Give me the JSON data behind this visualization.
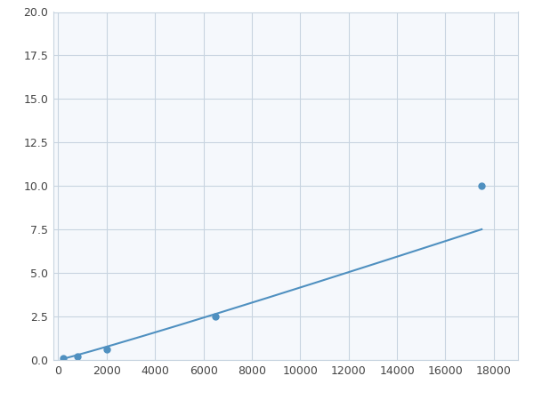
{
  "x": [
    200,
    800,
    2000,
    6500,
    17500
  ],
  "y": [
    0.1,
    0.2,
    0.6,
    2.5,
    10.0
  ],
  "line_color": "#4f90c0",
  "marker_color": "#4f90c0",
  "marker_size": 5,
  "xlim": [
    -200,
    19000
  ],
  "ylim": [
    0,
    20.0
  ],
  "xticks": [
    0,
    2000,
    4000,
    6000,
    8000,
    10000,
    12000,
    14000,
    16000,
    18000
  ],
  "yticks": [
    0.0,
    2.5,
    5.0,
    7.5,
    10.0,
    12.5,
    15.0,
    17.5,
    20.0
  ],
  "grid_color": "#c8d4e0",
  "background_color": "#f5f8fc",
  "figure_bg": "#ffffff"
}
